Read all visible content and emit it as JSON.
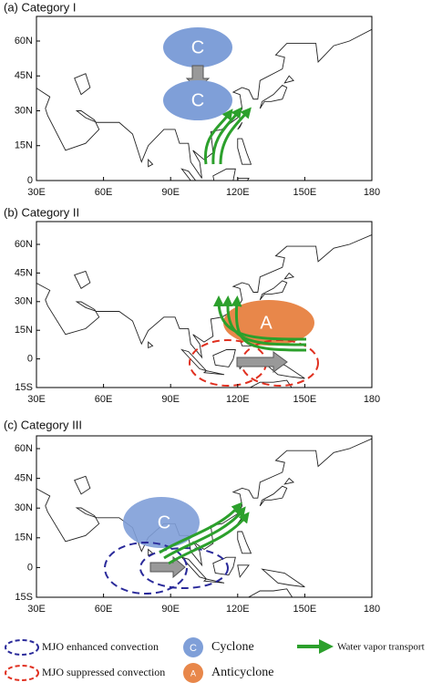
{
  "panels": [
    {
      "title": "(a) Category I",
      "y_labels": [
        "60N",
        "45N",
        "30N",
        "15N",
        "0"
      ],
      "x_labels": [
        "30E",
        "60E",
        "90E",
        "120E",
        "150E",
        "180"
      ],
      "markers": [
        "C",
        "C"
      ]
    },
    {
      "title": "(b) Category II",
      "y_labels": [
        "60N",
        "45N",
        "30N",
        "15N",
        "0",
        "15S"
      ],
      "x_labels": [
        "30E",
        "60E",
        "90E",
        "120E",
        "150E",
        "180"
      ],
      "markers": [
        "A"
      ]
    },
    {
      "title": "(c) Category III",
      "y_labels": [
        "60N",
        "45N",
        "30N",
        "15N",
        "0",
        "15S"
      ],
      "x_labels": [
        "30E",
        "60E",
        "90E",
        "120E",
        "150E",
        "180"
      ],
      "markers": [
        "C"
      ]
    }
  ],
  "legend": [
    "MJO enhanced convection",
    "MJO suppressed convection",
    "Cyclone",
    "Anticyclone",
    "Water vapor transport"
  ],
  "legend_markers": [
    "C",
    "A"
  ]
}
